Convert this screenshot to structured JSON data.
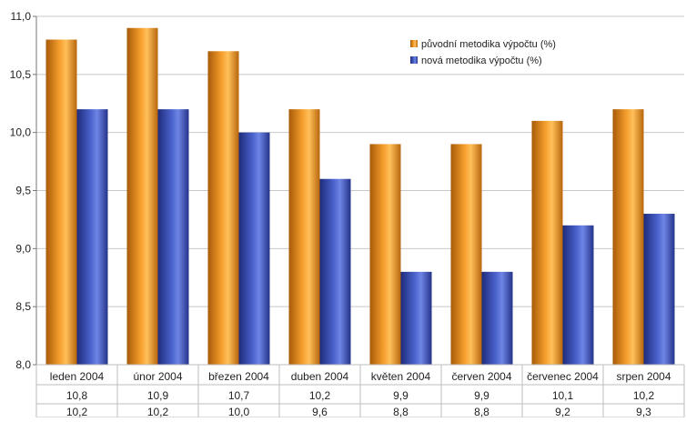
{
  "chart_data": {
    "type": "bar",
    "title": "",
    "xlabel": "",
    "ylabel": "",
    "ylim": [
      8.0,
      11.0
    ],
    "yticks": [
      "8,0",
      "8,5",
      "9,0",
      "9,5",
      "10,0",
      "10,5",
      "11,0"
    ],
    "grid": true,
    "legend_position": "top-right",
    "categories": [
      "leden 2004",
      "únor 2004",
      "březen 2004",
      "duben 2004",
      "květen 2004",
      "červen 2004",
      "červenec 2004",
      "srpen 2004"
    ],
    "series": [
      {
        "name": "původní metodika výpočtu (%)",
        "color": "#e08a1c",
        "values": [
          10.8,
          10.9,
          10.7,
          10.2,
          9.9,
          9.9,
          10.1,
          10.2
        ],
        "labels": [
          "10,8",
          "10,9",
          "10,7",
          "10,2",
          "9,9",
          "9,9",
          "10,1",
          "10,2"
        ]
      },
      {
        "name": "nová metodika výpočtu (%)",
        "color": "#3b4fb0",
        "values": [
          10.2,
          10.2,
          10.0,
          9.6,
          8.8,
          8.8,
          9.2,
          9.3
        ],
        "labels": [
          "10,2",
          "10,2",
          "10,0",
          "9,6",
          "8,8",
          "8,8",
          "9,2",
          "9,3"
        ]
      }
    ]
  }
}
